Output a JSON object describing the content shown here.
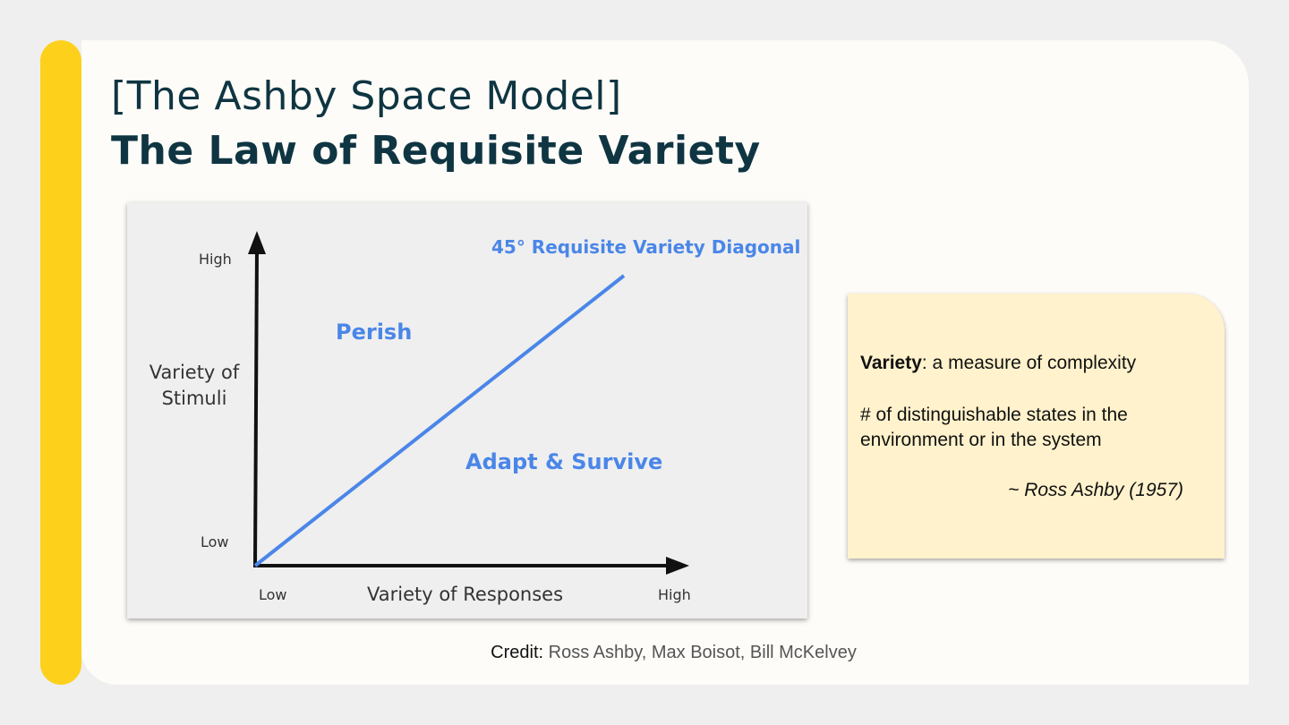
{
  "colors": {
    "accent": "#fdd01b",
    "title": "#0f3542",
    "diagonal": "#4a86e8",
    "note_bg": "#fff2cc"
  },
  "title": {
    "line1": "[The Ashby Space Model]",
    "line2": "The Law of Requisite Variety"
  },
  "diagram": {
    "y_axis": {
      "title": "Variety of\nStimuli",
      "high": "High",
      "low": "Low"
    },
    "x_axis": {
      "title": "Variety of Responses",
      "low": "Low",
      "high": "High"
    },
    "diagonal_label": "45° Requisite Variety Diagonal",
    "region_above": "Perish",
    "region_below": "Adapt & Survive"
  },
  "note": {
    "term": "Variety",
    "definition": ": a measure of complexity",
    "description": "# of distinguishable states in the environment or in the system",
    "citation": "~ Ross Ashby (1957)"
  },
  "credit": {
    "label": "Credit:",
    "names": " Ross Ashby, Max Boisot, Bill McKelvey"
  }
}
